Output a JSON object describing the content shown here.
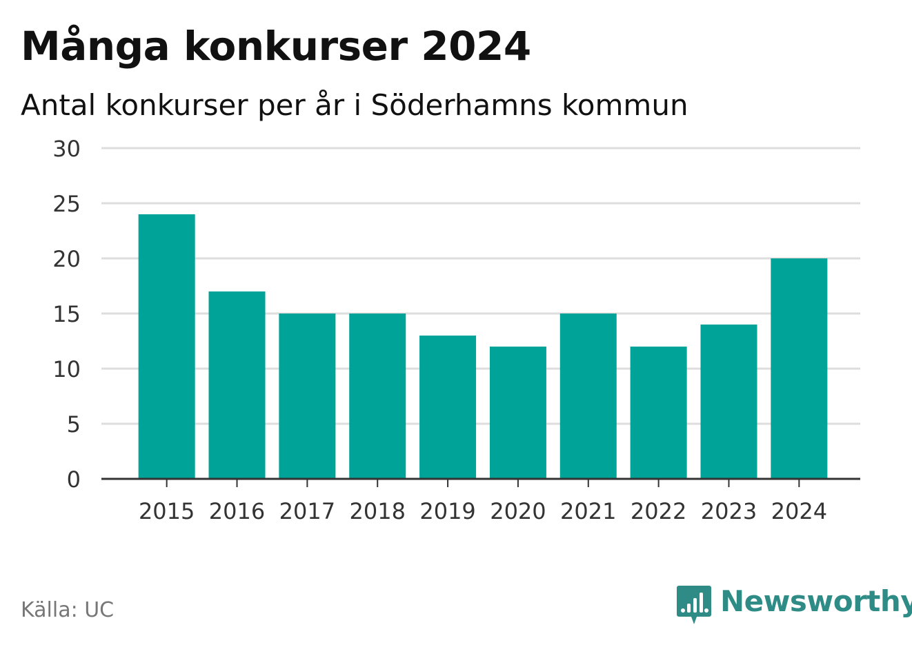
{
  "title": "Många konkurser 2024",
  "subtitle": "Antal konkurser per år i Söderhamns kommun",
  "source": "Källa: UC",
  "brand": {
    "name": "Newsworthy",
    "color": "#2e8b86",
    "icon": "newsworthy-logo-icon"
  },
  "colors": {
    "bar": "#00a398",
    "grid": "#dddddd",
    "axis": "#333333"
  },
  "chart_data": {
    "type": "bar",
    "categories": [
      "2015",
      "2016",
      "2017",
      "2018",
      "2019",
      "2020",
      "2021",
      "2022",
      "2023",
      "2024"
    ],
    "values": [
      24,
      17,
      15,
      15,
      13,
      12,
      15,
      12,
      14,
      20
    ],
    "title": "Många konkurser 2024",
    "subtitle": "Antal konkurser per år i Söderhamns kommun",
    "xlabel": "",
    "ylabel": "",
    "ylim": [
      0,
      30
    ],
    "yticks": [
      0,
      5,
      10,
      15,
      20,
      25,
      30
    ],
    "grid": true,
    "legend": "none"
  }
}
